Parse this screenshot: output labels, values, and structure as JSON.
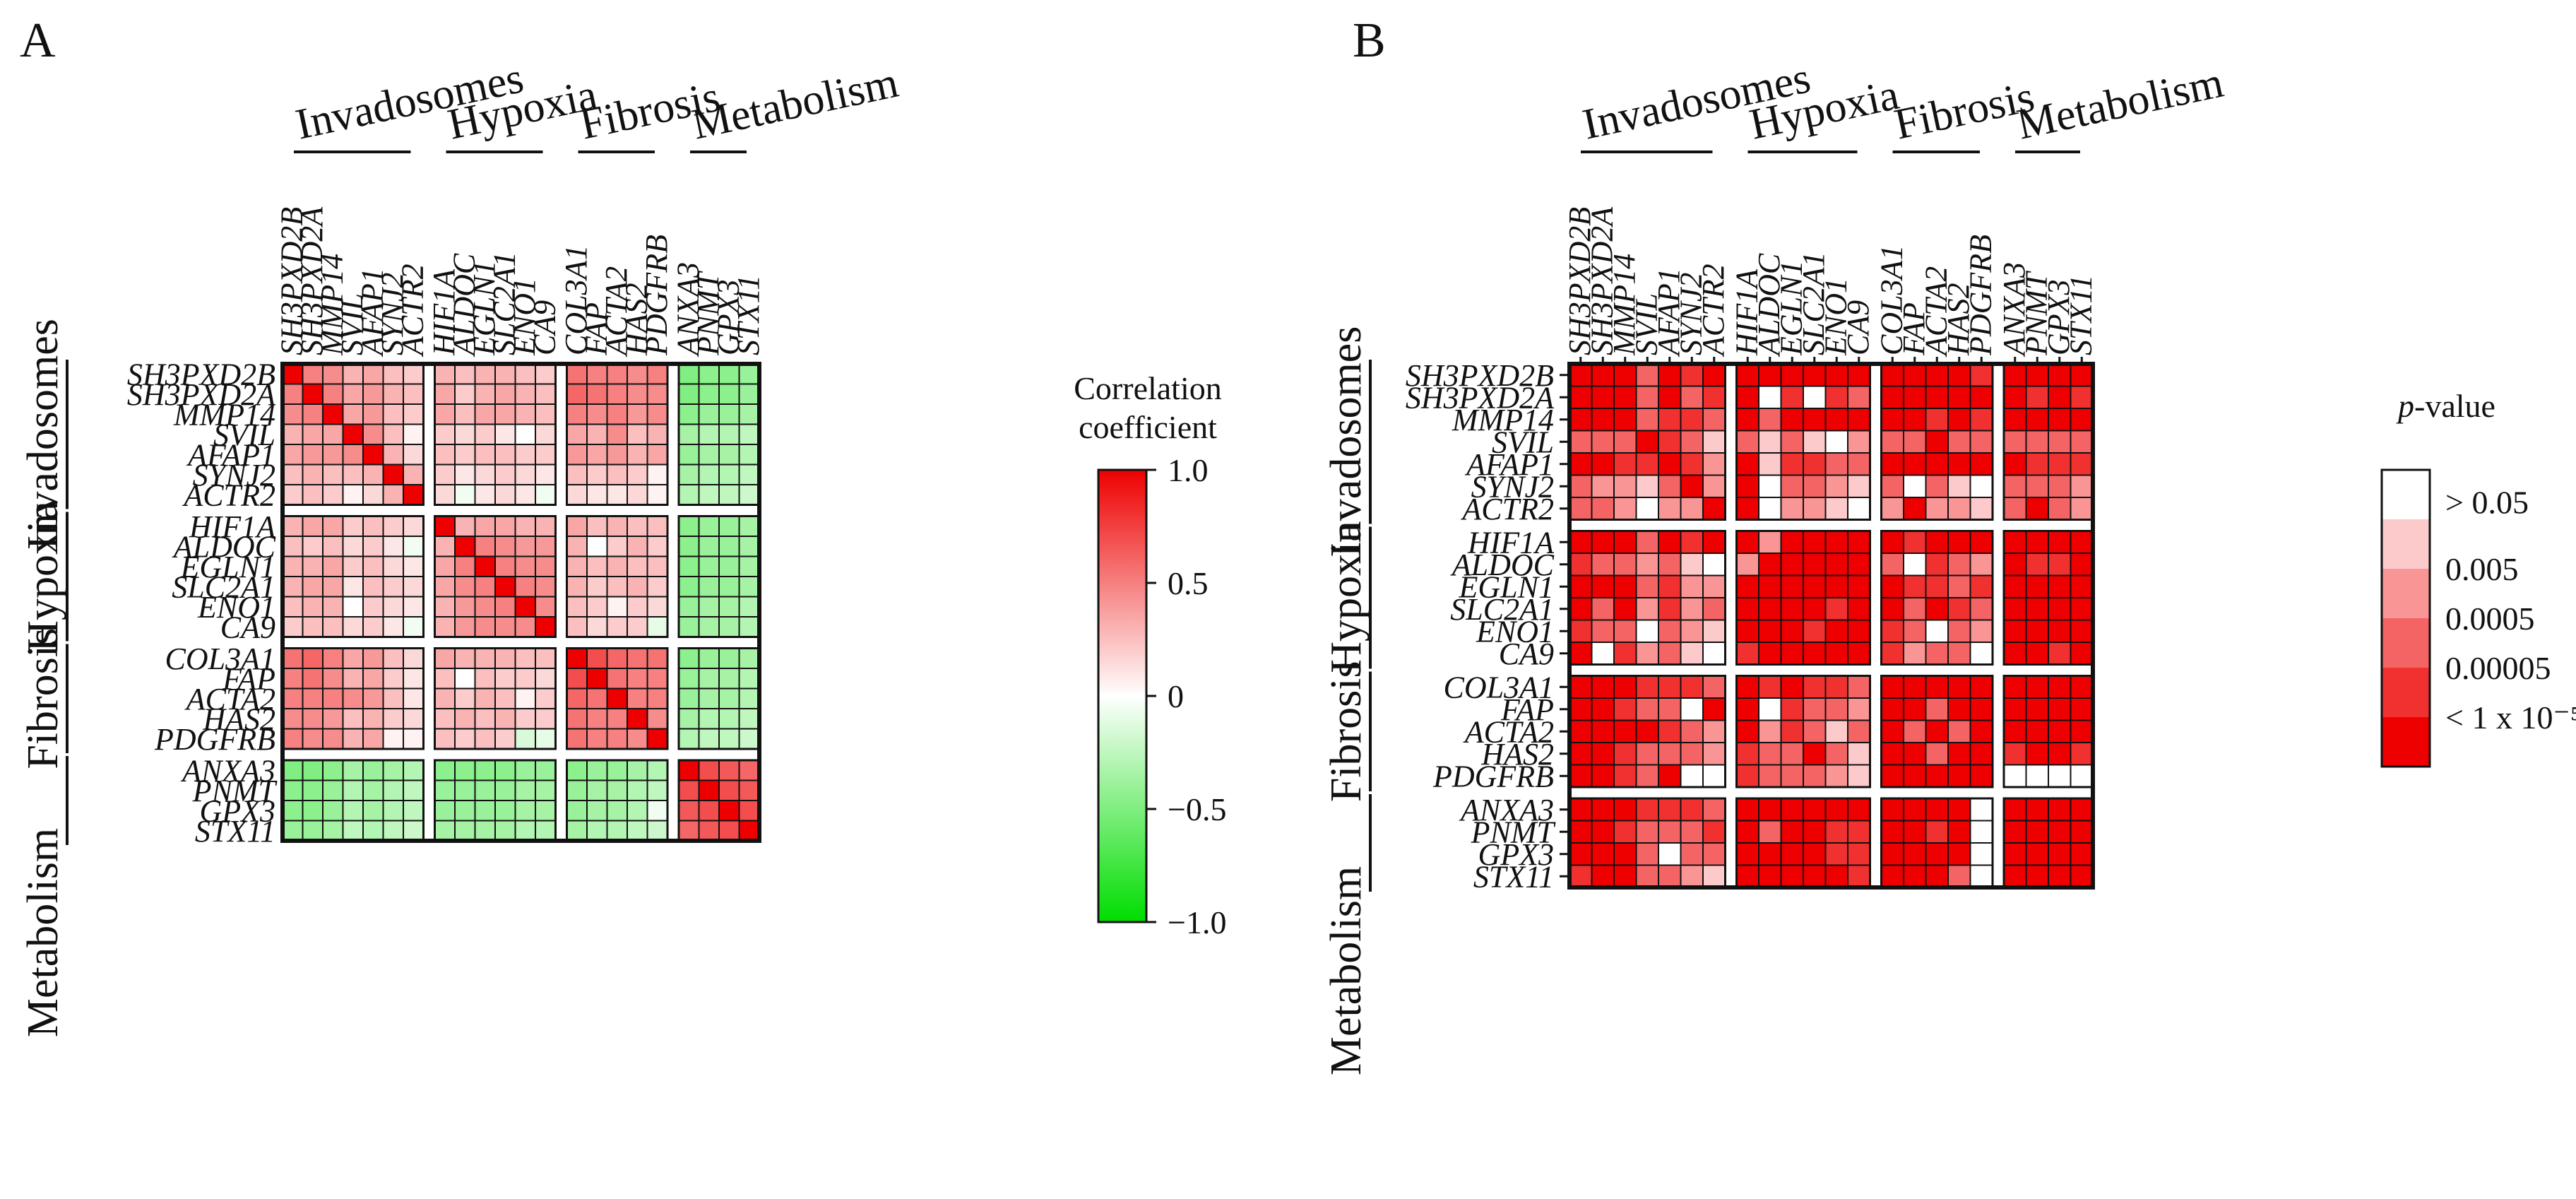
{
  "panel_letters": [
    "A",
    "B"
  ],
  "groups": [
    "Invadosomes",
    "Hypoxia",
    "Fibrosis",
    "Metabolism"
  ],
  "group_sizes": [
    7,
    6,
    5,
    4
  ],
  "genes": [
    "SH3PXD2B",
    "SH3PXD2A",
    "MMP14",
    "SVIL",
    "AFAP1",
    "SYNJ2",
    "ACTR2",
    "HIF1A",
    "ALDOC",
    "EGLN1",
    "SLC2A1",
    "ENO1",
    "CA9",
    "COL3A1",
    "FAP",
    "ACTA2",
    "HAS2",
    "PDGFRB",
    "ANXA3",
    "PNMT",
    "GPX3",
    "STX11"
  ],
  "legend_a": {
    "title_lines": [
      "Correlation",
      "coefficient"
    ],
    "ticks": [
      "1.0",
      "0.5",
      "0",
      "−0.5",
      "−1.0"
    ],
    "tick_values": [
      1.0,
      0.5,
      0,
      -0.5,
      -1.0
    ]
  },
  "legend_b": {
    "title_italic": "p",
    "title_rest": "-value",
    "ticks": [
      "> 0.05",
      "0.005",
      "0.0005",
      "0.00005",
      "< 1 x 10⁻⁵"
    ]
  },
  "colors": {
    "red": "#ee0000",
    "green": "#00dd00",
    "white": "#ffffff",
    "p_levels": [
      "#ffffff",
      "#fccaca",
      "#f99595",
      "#f56464",
      "#f13030",
      "#ee0000"
    ]
  },
  "chart_data": [
    {
      "type": "heatmap",
      "panel": "A",
      "value": "Correlation coefficient",
      "range": [
        -1.0,
        1.0
      ],
      "rows": [
        "SH3PXD2B",
        "SH3PXD2A",
        "MMP14",
        "SVIL",
        "AFAP1",
        "SYNJ2",
        "ACTR2",
        "HIF1A",
        "ALDOC",
        "EGLN1",
        "SLC2A1",
        "ENO1",
        "CA9",
        "COL3A1",
        "FAP",
        "ACTA2",
        "HAS2",
        "PDGFRB",
        "ANXA3",
        "PNMT",
        "GPX3",
        "STX11"
      ],
      "columns": [
        "SH3PXD2B",
        "SH3PXD2A",
        "MMP14",
        "SVIL",
        "AFAP1",
        "SYNJ2",
        "ACTR2",
        "HIF1A",
        "ALDOC",
        "EGLN1",
        "SLC2A1",
        "ENO1",
        "CA9",
        "COL3A1",
        "FAP",
        "ACTA2",
        "HAS2",
        "PDGFRB",
        "ANXA3",
        "PNMT",
        "GPX3",
        "STX11"
      ],
      "values": [
        [
          1,
          0.5,
          0.45,
          0.3,
          0.35,
          0.25,
          0.2,
          0.3,
          0.25,
          0.3,
          0.3,
          0.25,
          0.2,
          0.55,
          0.5,
          0.5,
          0.45,
          0.5,
          -0.5,
          -0.45,
          -0.45,
          -0.4
        ],
        [
          0.5,
          1,
          0.5,
          0.35,
          0.4,
          0.3,
          0.25,
          0.35,
          0.2,
          0.3,
          0.35,
          0.3,
          0.25,
          0.6,
          0.55,
          0.5,
          0.45,
          0.45,
          -0.5,
          -0.45,
          -0.45,
          -0.4
        ],
        [
          0.45,
          0.5,
          1,
          0.35,
          0.4,
          0.25,
          0.2,
          0.35,
          0.25,
          0.35,
          0.35,
          0.3,
          0.25,
          0.5,
          0.45,
          0.5,
          0.4,
          0.45,
          -0.45,
          -0.4,
          -0.4,
          -0.35
        ],
        [
          0.3,
          0.35,
          0.35,
          1,
          0.45,
          0.25,
          0.05,
          0.2,
          0.15,
          0.2,
          0.1,
          0,
          0.15,
          0.35,
          0.3,
          0.45,
          0.25,
          0.3,
          -0.35,
          -0.3,
          -0.3,
          -0.25
        ],
        [
          0.35,
          0.4,
          0.4,
          0.45,
          1,
          0.3,
          0.15,
          0.25,
          0.2,
          0.25,
          0.25,
          0.2,
          0.2,
          0.4,
          0.35,
          0.4,
          0.3,
          0.35,
          -0.4,
          -0.35,
          -0.35,
          -0.3
        ],
        [
          0.25,
          0.3,
          0.25,
          0.25,
          0.3,
          1,
          0.3,
          0.2,
          0.1,
          0.15,
          0.2,
          0.15,
          0.1,
          0.25,
          0.2,
          0.25,
          0.2,
          0.05,
          -0.35,
          -0.3,
          -0.3,
          -0.25
        ],
        [
          0.2,
          0.25,
          0.2,
          0.05,
          0.15,
          0.3,
          1,
          0.15,
          -0.05,
          0.1,
          0.15,
          0.1,
          -0.05,
          0.15,
          0.1,
          0.1,
          0.15,
          0.05,
          -0.3,
          -0.25,
          -0.25,
          -0.2
        ],
        [
          0.3,
          0.35,
          0.35,
          0.2,
          0.25,
          0.2,
          0.15,
          1,
          0.3,
          0.35,
          0.35,
          0.3,
          0.3,
          0.35,
          0.25,
          0.3,
          0.25,
          0.25,
          -0.45,
          -0.4,
          -0.4,
          -0.35
        ],
        [
          0.25,
          0.2,
          0.25,
          0.15,
          0.2,
          0.1,
          -0.05,
          0.3,
          1,
          0.5,
          0.45,
          0.4,
          0.4,
          0.3,
          0,
          0.2,
          0.3,
          0.2,
          -0.45,
          -0.4,
          -0.4,
          -0.35
        ],
        [
          0.3,
          0.3,
          0.35,
          0.2,
          0.25,
          0.15,
          0.1,
          0.35,
          0.5,
          1,
          0.5,
          0.45,
          0.45,
          0.3,
          0.25,
          0.3,
          0.25,
          0.25,
          -0.45,
          -0.4,
          -0.4,
          -0.35
        ],
        [
          0.3,
          0.35,
          0.35,
          0.1,
          0.25,
          0.2,
          0.15,
          0.35,
          0.45,
          0.5,
          1,
          0.5,
          0.45,
          0.3,
          0.2,
          0.25,
          0.3,
          0.2,
          -0.45,
          -0.4,
          -0.4,
          -0.35
        ],
        [
          0.25,
          0.3,
          0.3,
          0,
          0.2,
          0.15,
          0.1,
          0.3,
          0.4,
          0.45,
          0.5,
          1,
          0.45,
          0.25,
          0.2,
          0.05,
          0.2,
          0.15,
          -0.4,
          -0.35,
          -0.35,
          -0.3
        ],
        [
          0.2,
          0.25,
          0.25,
          0.15,
          0.2,
          0.1,
          -0.05,
          0.3,
          0.4,
          0.45,
          0.45,
          0.45,
          1,
          0.25,
          0.15,
          0.2,
          0.2,
          -0.1,
          -0.4,
          -0.35,
          -0.35,
          -0.3
        ],
        [
          0.55,
          0.6,
          0.5,
          0.35,
          0.4,
          0.25,
          0.15,
          0.35,
          0.3,
          0.3,
          0.3,
          0.25,
          0.25,
          1,
          0.7,
          0.6,
          0.55,
          0.55,
          -0.45,
          -0.4,
          -0.4,
          -0.35
        ],
        [
          0.5,
          0.55,
          0.45,
          0.3,
          0.35,
          0.2,
          0.1,
          0.25,
          0,
          0.25,
          0.2,
          0.2,
          0.15,
          0.7,
          1,
          0.55,
          0.5,
          0.5,
          -0.4,
          -0.35,
          -0.35,
          -0.3
        ],
        [
          0.5,
          0.5,
          0.5,
          0.45,
          0.4,
          0.25,
          0.1,
          0.3,
          0.2,
          0.3,
          0.25,
          0.05,
          0.2,
          0.6,
          0.55,
          1,
          0.5,
          0.5,
          -0.4,
          -0.35,
          -0.35,
          -0.3
        ],
        [
          0.45,
          0.45,
          0.4,
          0.25,
          0.3,
          0.2,
          0.15,
          0.25,
          0.3,
          0.25,
          0.3,
          0.2,
          0.2,
          0.55,
          0.5,
          0.5,
          1,
          0.45,
          -0.35,
          -0.3,
          -0.3,
          -0.25
        ],
        [
          0.5,
          0.45,
          0.45,
          0.3,
          0.35,
          0.05,
          0.05,
          0.25,
          0.2,
          0.25,
          0.2,
          -0.15,
          -0.1,
          0.55,
          0.5,
          0.5,
          0.45,
          1,
          -0.3,
          -0.25,
          -0.25,
          -0.2
        ],
        [
          -0.5,
          -0.5,
          -0.45,
          -0.35,
          -0.4,
          -0.35,
          -0.3,
          -0.45,
          -0.45,
          -0.45,
          -0.45,
          -0.4,
          -0.4,
          -0.45,
          -0.4,
          -0.4,
          -0.35,
          -0.3,
          1,
          0.7,
          0.65,
          0.6
        ],
        [
          -0.45,
          -0.45,
          -0.4,
          -0.3,
          -0.35,
          -0.3,
          -0.25,
          -0.4,
          -0.4,
          -0.4,
          -0.4,
          -0.35,
          -0.35,
          -0.4,
          -0.35,
          -0.35,
          -0.3,
          -0.25,
          0.7,
          1,
          0.7,
          0.65
        ],
        [
          -0.45,
          -0.45,
          -0.4,
          -0.3,
          -0.35,
          -0.3,
          -0.25,
          -0.4,
          -0.4,
          -0.4,
          -0.4,
          -0.35,
          -0.35,
          -0.4,
          -0.35,
          -0.35,
          -0.3,
          -0.05,
          0.65,
          0.7,
          1,
          0.7
        ],
        [
          -0.4,
          -0.4,
          -0.35,
          -0.25,
          -0.3,
          -0.25,
          -0.2,
          -0.35,
          -0.35,
          -0.35,
          -0.35,
          -0.3,
          -0.3,
          -0.35,
          -0.3,
          -0.3,
          -0.25,
          -0.2,
          0.6,
          0.65,
          0.7,
          1
        ]
      ]
    },
    {
      "type": "heatmap",
      "panel": "B",
      "value": "p-value category (0 = > 0.05, 1 = 0.005, 2 = 0.0005, 3 = 0.00005, 4 = < 1 x 10^-5, 5 = strongest)",
      "categories": [
        "> 0.05",
        "0.005",
        "0.0005",
        "0.00005",
        "< 1 x 10⁻⁵"
      ],
      "rows": [
        "SH3PXD2B",
        "SH3PXD2A",
        "MMP14",
        "SVIL",
        "AFAP1",
        "SYNJ2",
        "ACTR2",
        "HIF1A",
        "ALDOC",
        "EGLN1",
        "SLC2A1",
        "ENO1",
        "CA9",
        "COL3A1",
        "FAP",
        "ACTA2",
        "HAS2",
        "PDGFRB",
        "ANXA3",
        "PNMT",
        "GPX3",
        "STX11"
      ],
      "columns": [
        "SH3PXD2B",
        "SH3PXD2A",
        "MMP14",
        "SVIL",
        "AFAP1",
        "SYNJ2",
        "ACTR2",
        "HIF1A",
        "ALDOC",
        "EGLN1",
        "SLC2A1",
        "ENO1",
        "CA9",
        "COL3A1",
        "FAP",
        "ACTA2",
        "HAS2",
        "PDGFRB",
        "ANXA3",
        "PNMT",
        "GPX3",
        "STX11"
      ],
      "values": [
        [
          5,
          5,
          5,
          3,
          5,
          4,
          5,
          5,
          5,
          5,
          5,
          5,
          5,
          5,
          5,
          5,
          5,
          4,
          5,
          5,
          5,
          5
        ],
        [
          5,
          5,
          5,
          3,
          5,
          3,
          4,
          5,
          0,
          4,
          0,
          4,
          3,
          5,
          5,
          5,
          5,
          5,
          5,
          4,
          5,
          4
        ],
        [
          5,
          5,
          5,
          3,
          4,
          4,
          3,
          5,
          3,
          5,
          5,
          5,
          5,
          5,
          5,
          4,
          5,
          4,
          5,
          5,
          5,
          5
        ],
        [
          3,
          3,
          3,
          5,
          4,
          3,
          1,
          3,
          1,
          3,
          1,
          0,
          2,
          3,
          3,
          5,
          3,
          3,
          3,
          3,
          3,
          3
        ],
        [
          5,
          5,
          4,
          4,
          5,
          4,
          2,
          5,
          1,
          4,
          4,
          3,
          3,
          5,
          5,
          5,
          5,
          5,
          5,
          4,
          4,
          4
        ],
        [
          3,
          2,
          2,
          1,
          3,
          5,
          2,
          5,
          0,
          3,
          3,
          2,
          1,
          3,
          0,
          3,
          1,
          0,
          3,
          3,
          3,
          2
        ],
        [
          3,
          3,
          2,
          0,
          2,
          2,
          5,
          5,
          0,
          2,
          2,
          1,
          0,
          2,
          5,
          2,
          2,
          1,
          3,
          5,
          3,
          2
        ],
        [
          5,
          5,
          5,
          3,
          5,
          4,
          5,
          5,
          2,
          5,
          5,
          5,
          5,
          5,
          4,
          5,
          5,
          5,
          5,
          5,
          5,
          5
        ],
        [
          4,
          3,
          3,
          2,
          3,
          1,
          0,
          2,
          5,
          5,
          5,
          5,
          5,
          3,
          0,
          4,
          3,
          2,
          5,
          4,
          4,
          5
        ],
        [
          5,
          5,
          5,
          3,
          4,
          2,
          2,
          5,
          5,
          5,
          5,
          5,
          5,
          5,
          4,
          4,
          3,
          4,
          5,
          5,
          5,
          5
        ],
        [
          5,
          3,
          5,
          2,
          4,
          2,
          3,
          5,
          5,
          5,
          5,
          4,
          5,
          5,
          3,
          5,
          4,
          3,
          5,
          5,
          5,
          5
        ],
        [
          4,
          3,
          3,
          0,
          3,
          2,
          1,
          5,
          5,
          5,
          4,
          5,
          5,
          4,
          3,
          0,
          3,
          2,
          5,
          5,
          5,
          5
        ],
        [
          5,
          0,
          4,
          2,
          3,
          1,
          0,
          4,
          5,
          5,
          5,
          5,
          5,
          4,
          2,
          3,
          3,
          0,
          5,
          5,
          4,
          5
        ],
        [
          5,
          5,
          5,
          4,
          4,
          4,
          3,
          5,
          4,
          5,
          4,
          4,
          3,
          5,
          5,
          5,
          5,
          5,
          5,
          5,
          5,
          5
        ],
        [
          5,
          5,
          4,
          3,
          3,
          0,
          5,
          5,
          0,
          4,
          3,
          3,
          2,
          5,
          5,
          3,
          5,
          5,
          5,
          5,
          5,
          5
        ],
        [
          5,
          5,
          5,
          5,
          4,
          3,
          2,
          5,
          2,
          4,
          3,
          1,
          3,
          5,
          3,
          5,
          3,
          5,
          5,
          5,
          5,
          5
        ],
        [
          5,
          5,
          4,
          3,
          3,
          3,
          2,
          4,
          3,
          3,
          5,
          3,
          1,
          5,
          5,
          3,
          5,
          5,
          4,
          5,
          5,
          4
        ],
        [
          5,
          5,
          4,
          3,
          5,
          0,
          0,
          4,
          3,
          3,
          3,
          2,
          1,
          5,
          5,
          5,
          5,
          5,
          0,
          0,
          0,
          0
        ],
        [
          5,
          5,
          5,
          4,
          4,
          4,
          3,
          5,
          5,
          5,
          5,
          5,
          5,
          5,
          5,
          5,
          5,
          0,
          5,
          5,
          5,
          5
        ],
        [
          5,
          5,
          4,
          3,
          3,
          3,
          4,
          5,
          3,
          5,
          5,
          4,
          4,
          5,
          5,
          4,
          5,
          0,
          5,
          5,
          5,
          5
        ],
        [
          5,
          5,
          5,
          3,
          0,
          3,
          3,
          5,
          5,
          5,
          5,
          4,
          4,
          5,
          5,
          5,
          5,
          0,
          5,
          5,
          5,
          5
        ],
        [
          4,
          5,
          5,
          3,
          3,
          2,
          1,
          5,
          5,
          5,
          5,
          5,
          4,
          5,
          5,
          5,
          3,
          0,
          5,
          5,
          5,
          5
        ]
      ]
    }
  ]
}
